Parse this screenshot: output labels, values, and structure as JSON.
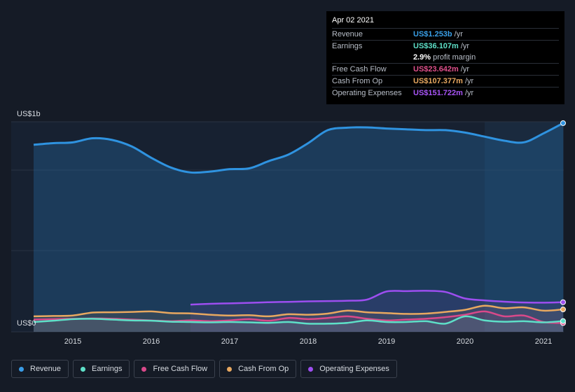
{
  "tooltip": {
    "date": "Apr 02 2021",
    "rows": [
      {
        "label": "Revenue",
        "value": "US$1.253b",
        "unit": "/yr",
        "color": "#3aa0e8"
      },
      {
        "label": "Earnings",
        "value": "US$36.107m",
        "unit": "/yr",
        "color": "#5ee0c8"
      },
      {
        "label": "",
        "value": "2.9%",
        "unit": "profit margin",
        "color": "#ffffff"
      },
      {
        "label": "Free Cash Flow",
        "value": "US$23.642m",
        "unit": "/yr",
        "color": "#e0508c"
      },
      {
        "label": "Cash From Op",
        "value": "US$107.377m",
        "unit": "/yr",
        "color": "#e8a860"
      },
      {
        "label": "Operating Expenses",
        "value": "US$151.722m",
        "unit": "/yr",
        "color": "#a855f7"
      }
    ]
  },
  "legend": [
    {
      "label": "Revenue",
      "color": "#3a9ce6"
    },
    {
      "label": "Earnings",
      "color": "#5ee0c8"
    },
    {
      "label": "Free Cash Flow",
      "color": "#d9498a"
    },
    {
      "label": "Cash From Op",
      "color": "#e8a860"
    },
    {
      "label": "Operating Expenses",
      "color": "#9d4ef0"
    }
  ],
  "chart_data": {
    "type": "area",
    "y_top_label": "US$1b",
    "y_bottom_label": "US$0",
    "ylim": [
      0,
      1.3
    ],
    "xlim": [
      2014.5,
      2021.25
    ],
    "highlight_start": 2020.25,
    "x_ticks": [
      "2015",
      "2016",
      "2017",
      "2018",
      "2019",
      "2020",
      "2021"
    ],
    "x_tick_values": [
      2015,
      2016,
      2017,
      2018,
      2019,
      2020,
      2021
    ],
    "series": [
      {
        "name": "Revenue",
        "color": "#2f93e0",
        "fill": true,
        "points": [
          [
            2014.5,
            1.12
          ],
          [
            2014.75,
            1.13
          ],
          [
            2015.0,
            1.135
          ],
          [
            2015.25,
            1.16
          ],
          [
            2015.5,
            1.15
          ],
          [
            2015.75,
            1.11
          ],
          [
            2016.0,
            1.04
          ],
          [
            2016.25,
            0.98
          ],
          [
            2016.5,
            0.95
          ],
          [
            2016.75,
            0.955
          ],
          [
            2017.0,
            0.97
          ],
          [
            2017.25,
            0.975
          ],
          [
            2017.5,
            1.02
          ],
          [
            2017.75,
            1.06
          ],
          [
            2018.0,
            1.13
          ],
          [
            2018.25,
            1.21
          ],
          [
            2018.5,
            1.225
          ],
          [
            2018.75,
            1.227
          ],
          [
            2019.0,
            1.22
          ],
          [
            2019.25,
            1.215
          ],
          [
            2019.5,
            1.21
          ],
          [
            2019.75,
            1.21
          ],
          [
            2020.0,
            1.195
          ],
          [
            2020.25,
            1.17
          ],
          [
            2020.5,
            1.145
          ],
          [
            2020.75,
            1.135
          ],
          [
            2021.0,
            1.19
          ],
          [
            2021.25,
            1.253
          ]
        ]
      },
      {
        "name": "Operating Expenses",
        "color": "#9d4ef0",
        "fill": false,
        "points": [
          [
            2016.5,
            0.137
          ],
          [
            2016.75,
            0.142
          ],
          [
            2017.0,
            0.145
          ],
          [
            2017.25,
            0.148
          ],
          [
            2017.5,
            0.152
          ],
          [
            2017.75,
            0.154
          ],
          [
            2018.0,
            0.157
          ],
          [
            2018.25,
            0.159
          ],
          [
            2018.5,
            0.161
          ],
          [
            2018.75,
            0.168
          ],
          [
            2019.0,
            0.218
          ],
          [
            2019.25,
            0.22
          ],
          [
            2019.5,
            0.222
          ],
          [
            2019.75,
            0.215
          ],
          [
            2020.0,
            0.175
          ],
          [
            2020.25,
            0.163
          ],
          [
            2020.5,
            0.155
          ],
          [
            2020.75,
            0.15
          ],
          [
            2021.0,
            0.149
          ],
          [
            2021.25,
            0.1517
          ]
        ]
      },
      {
        "name": "Cash From Op",
        "color": "#e8a860",
        "fill": false,
        "points": [
          [
            2014.5,
            0.065
          ],
          [
            2014.75,
            0.067
          ],
          [
            2015.0,
            0.07
          ],
          [
            2015.25,
            0.088
          ],
          [
            2015.5,
            0.09
          ],
          [
            2015.75,
            0.092
          ],
          [
            2016.0,
            0.095
          ],
          [
            2016.25,
            0.085
          ],
          [
            2016.5,
            0.083
          ],
          [
            2016.75,
            0.075
          ],
          [
            2017.0,
            0.07
          ],
          [
            2017.25,
            0.072
          ],
          [
            2017.5,
            0.065
          ],
          [
            2017.75,
            0.078
          ],
          [
            2018.0,
            0.075
          ],
          [
            2018.25,
            0.082
          ],
          [
            2018.5,
            0.1
          ],
          [
            2018.75,
            0.09
          ],
          [
            2019.0,
            0.085
          ],
          [
            2019.25,
            0.08
          ],
          [
            2019.5,
            0.082
          ],
          [
            2019.75,
            0.092
          ],
          [
            2020.0,
            0.105
          ],
          [
            2020.25,
            0.13
          ],
          [
            2020.5,
            0.115
          ],
          [
            2020.75,
            0.12
          ],
          [
            2021.0,
            0.1
          ],
          [
            2021.25,
            0.1074
          ]
        ]
      },
      {
        "name": "Free Cash Flow",
        "color": "#d9498a",
        "fill": false,
        "points": [
          [
            2014.5,
            0.045
          ],
          [
            2014.75,
            0.048
          ],
          [
            2015.0,
            0.05
          ],
          [
            2015.25,
            0.052
          ],
          [
            2015.5,
            0.05
          ],
          [
            2015.75,
            0.045
          ],
          [
            2016.0,
            0.04
          ],
          [
            2016.25,
            0.035
          ],
          [
            2016.5,
            0.04
          ],
          [
            2016.75,
            0.035
          ],
          [
            2017.0,
            0.04
          ],
          [
            2017.25,
            0.048
          ],
          [
            2017.5,
            0.038
          ],
          [
            2017.75,
            0.055
          ],
          [
            2018.0,
            0.048
          ],
          [
            2018.25,
            0.055
          ],
          [
            2018.5,
            0.065
          ],
          [
            2018.75,
            0.05
          ],
          [
            2019.0,
            0.04
          ],
          [
            2019.25,
            0.045
          ],
          [
            2019.5,
            0.05
          ],
          [
            2019.75,
            0.06
          ],
          [
            2020.0,
            0.075
          ],
          [
            2020.25,
            0.095
          ],
          [
            2020.5,
            0.065
          ],
          [
            2020.75,
            0.07
          ],
          [
            2021.0,
            0.03
          ],
          [
            2021.25,
            0.0236
          ]
        ]
      },
      {
        "name": "Earnings",
        "color": "#5ee0c8",
        "fill": false,
        "points": [
          [
            2014.5,
            0.03
          ],
          [
            2014.75,
            0.038
          ],
          [
            2015.0,
            0.048
          ],
          [
            2015.25,
            0.05
          ],
          [
            2015.5,
            0.045
          ],
          [
            2015.75,
            0.04
          ],
          [
            2016.0,
            0.038
          ],
          [
            2016.25,
            0.032
          ],
          [
            2016.5,
            0.03
          ],
          [
            2016.75,
            0.028
          ],
          [
            2017.0,
            0.03
          ],
          [
            2017.25,
            0.028
          ],
          [
            2017.5,
            0.025
          ],
          [
            2017.75,
            0.03
          ],
          [
            2018.0,
            0.02
          ],
          [
            2018.25,
            0.02
          ],
          [
            2018.5,
            0.025
          ],
          [
            2018.75,
            0.04
          ],
          [
            2019.0,
            0.03
          ],
          [
            2019.25,
            0.03
          ],
          [
            2019.5,
            0.035
          ],
          [
            2019.75,
            0.02
          ],
          [
            2020.0,
            0.065
          ],
          [
            2020.25,
            0.04
          ],
          [
            2020.5,
            0.032
          ],
          [
            2020.75,
            0.035
          ],
          [
            2021.0,
            0.028
          ],
          [
            2021.25,
            0.0361
          ]
        ]
      }
    ],
    "grid": true,
    "legend_position": "bottom-left"
  }
}
